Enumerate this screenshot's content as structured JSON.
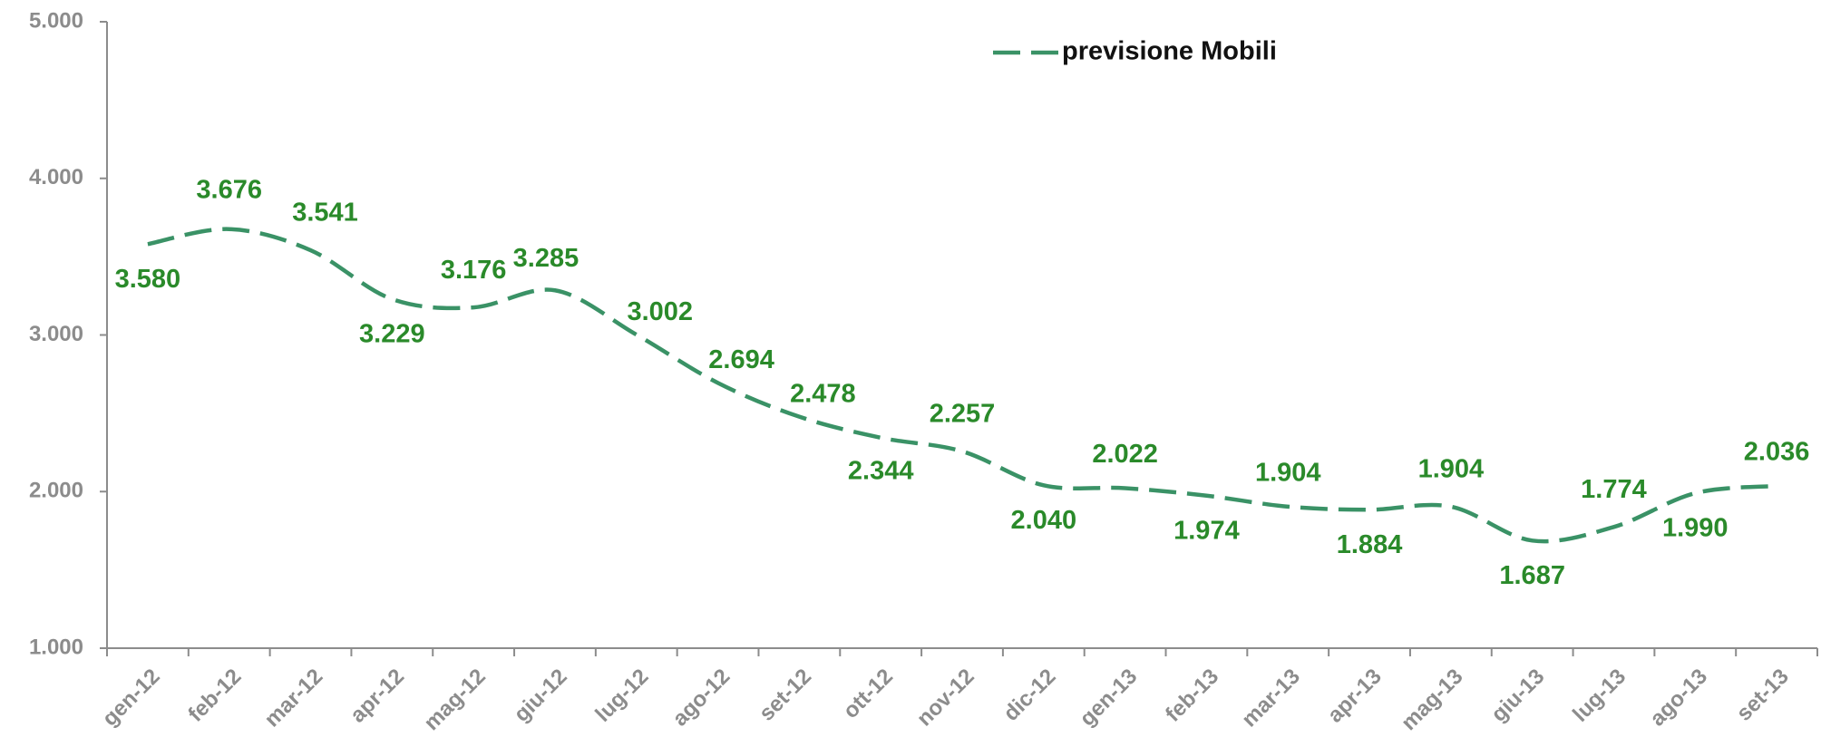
{
  "chart_data": {
    "type": "line",
    "categories": [
      "gen-12",
      "feb-12",
      "mar-12",
      "apr-12",
      "mag-12",
      "giu-12",
      "lug-12",
      "ago-12",
      "set-12",
      "ott-12",
      "nov-12",
      "dic-12",
      "gen-13",
      "feb-13",
      "mar-13",
      "apr-13",
      "mag-13",
      "giu-13",
      "lug-13",
      "ago-13",
      "set-13"
    ],
    "series": [
      {
        "name": "previsione Mobili",
        "color": "#3a9266",
        "values": [
          3580,
          3676,
          3541,
          3229,
          3176,
          3285,
          3002,
          2694,
          2478,
          2344,
          2257,
          2040,
          2022,
          1974,
          1904,
          1884,
          1904,
          1687,
          1774,
          1990,
          2036
        ],
        "value_labels": [
          "3.580",
          "3.676",
          "3.541",
          "3.229",
          "3.176",
          "3.285",
          "3.002",
          "2.694",
          "2.478",
          "2.344",
          "2.257",
          "2.040",
          "2.022",
          "1.974",
          "1.904",
          "1.884",
          "1.904",
          "1.687",
          "1.774",
          "1.990",
          "2.036"
        ]
      }
    ],
    "ylim": [
      1000,
      5000
    ],
    "yticks": [
      {
        "value": 1000,
        "label": "1.000"
      },
      {
        "value": 2000,
        "label": "2.000"
      },
      {
        "value": 3000,
        "label": "3.000"
      },
      {
        "value": 4000,
        "label": "4.000"
      },
      {
        "value": 5000,
        "label": "5.000"
      }
    ],
    "legend": "top"
  }
}
